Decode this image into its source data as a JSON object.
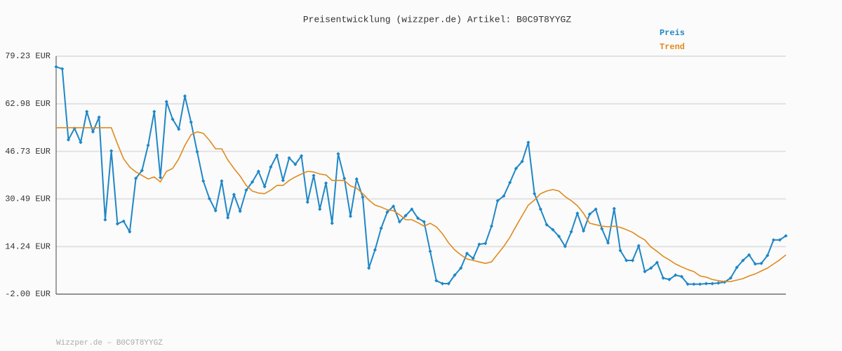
{
  "chart_data": {
    "type": "line",
    "title": "Preisentwicklung (wizzper.de) Artikel: B0C9T8YYGZ",
    "source": "Wizzper.de – B0C9T8YYGZ",
    "ylim": [
      -2.0,
      79.23
    ],
    "yticks": [
      {
        "value": -2.0,
        "label": "-2.00 EUR"
      },
      {
        "value": 14.24,
        "label": "14.24 EUR"
      },
      {
        "value": 30.49,
        "label": "30.49 EUR"
      },
      {
        "value": 46.73,
        "label": "46.73 EUR"
      },
      {
        "value": 62.98,
        "label": "62.98 EUR"
      },
      {
        "value": 79.23,
        "label": "79.23 EUR"
      }
    ],
    "grid": true,
    "legend": "top-right",
    "series": [
      {
        "name": "Preis",
        "color": "#1f87c6",
        "markers": true,
        "values": [
          75.6,
          74.9,
          50.7,
          54.6,
          49.8,
          60.3,
          53.4,
          58.4,
          23.4,
          46.9,
          22.0,
          22.9,
          19.3,
          37.5,
          40.2,
          48.8,
          60.3,
          37.8,
          63.7,
          57.7,
          54.3,
          65.6,
          56.7,
          46.6,
          36.6,
          30.6,
          26.5,
          36.6,
          24.1,
          32.0,
          26.3,
          33.5,
          36.3,
          39.9,
          34.7,
          41.4,
          45.4,
          36.8,
          44.5,
          42.3,
          45.2,
          29.4,
          38.5,
          27.0,
          35.9,
          22.2,
          45.9,
          37.5,
          24.6,
          37.3,
          31.1,
          6.9,
          13.1,
          20.5,
          26.0,
          28.0,
          22.7,
          24.8,
          27.0,
          23.9,
          22.7,
          12.6,
          2.6,
          1.6,
          1.6,
          4.5,
          6.9,
          11.9,
          10.2,
          15.0,
          15.3,
          21.2,
          29.9,
          31.5,
          36.1,
          40.9,
          43.3,
          49.8,
          32.3,
          27.0,
          21.7,
          20.0,
          17.7,
          14.3,
          19.3,
          25.6,
          19.6,
          25.3,
          27.0,
          20.3,
          15.5,
          27.2,
          12.9,
          9.5,
          9.5,
          14.5,
          5.7,
          6.9,
          8.8,
          3.5,
          3.0,
          4.5,
          4.0,
          1.4,
          1.4,
          1.4,
          1.6,
          1.6,
          1.8,
          2.1,
          3.5,
          7.1,
          9.5,
          11.4,
          8.3,
          8.5,
          11.2,
          16.5,
          16.5,
          17.9
        ]
      },
      {
        "name": "Trend",
        "color": "#e08a1e",
        "markers": false,
        "values": [
          54.8,
          54.8,
          54.8,
          54.8,
          54.8,
          54.8,
          54.8,
          54.8,
          54.8,
          54.8,
          49.3,
          44.2,
          41.4,
          39.7,
          38.5,
          37.3,
          38.0,
          36.3,
          39.9,
          40.9,
          44.2,
          48.8,
          52.4,
          53.4,
          52.9,
          50.5,
          47.6,
          47.6,
          43.8,
          40.9,
          38.3,
          35.1,
          33.2,
          32.5,
          32.3,
          33.5,
          35.1,
          35.1,
          36.8,
          38.0,
          39.0,
          39.9,
          39.7,
          39.0,
          38.7,
          36.8,
          36.8,
          36.8,
          34.9,
          34.2,
          32.3,
          30.1,
          28.4,
          27.7,
          26.8,
          26.5,
          25.1,
          23.4,
          23.4,
          22.4,
          21.2,
          22.2,
          21.0,
          18.6,
          15.5,
          13.1,
          11.4,
          10.0,
          9.5,
          9.0,
          8.5,
          9.0,
          11.7,
          14.3,
          17.4,
          21.2,
          24.8,
          28.4,
          30.1,
          32.3,
          33.2,
          33.7,
          33.2,
          31.3,
          29.9,
          28.2,
          25.6,
          22.2,
          21.7,
          21.2,
          21.0,
          21.2,
          20.8,
          20.0,
          19.1,
          17.7,
          16.5,
          14.1,
          12.6,
          10.9,
          9.7,
          8.3,
          7.3,
          6.4,
          5.7,
          4.2,
          3.8,
          3.0,
          2.6,
          2.3,
          2.3,
          2.8,
          3.3,
          4.2,
          4.9,
          5.9,
          6.9,
          8.3,
          9.7,
          11.4
        ]
      }
    ]
  }
}
